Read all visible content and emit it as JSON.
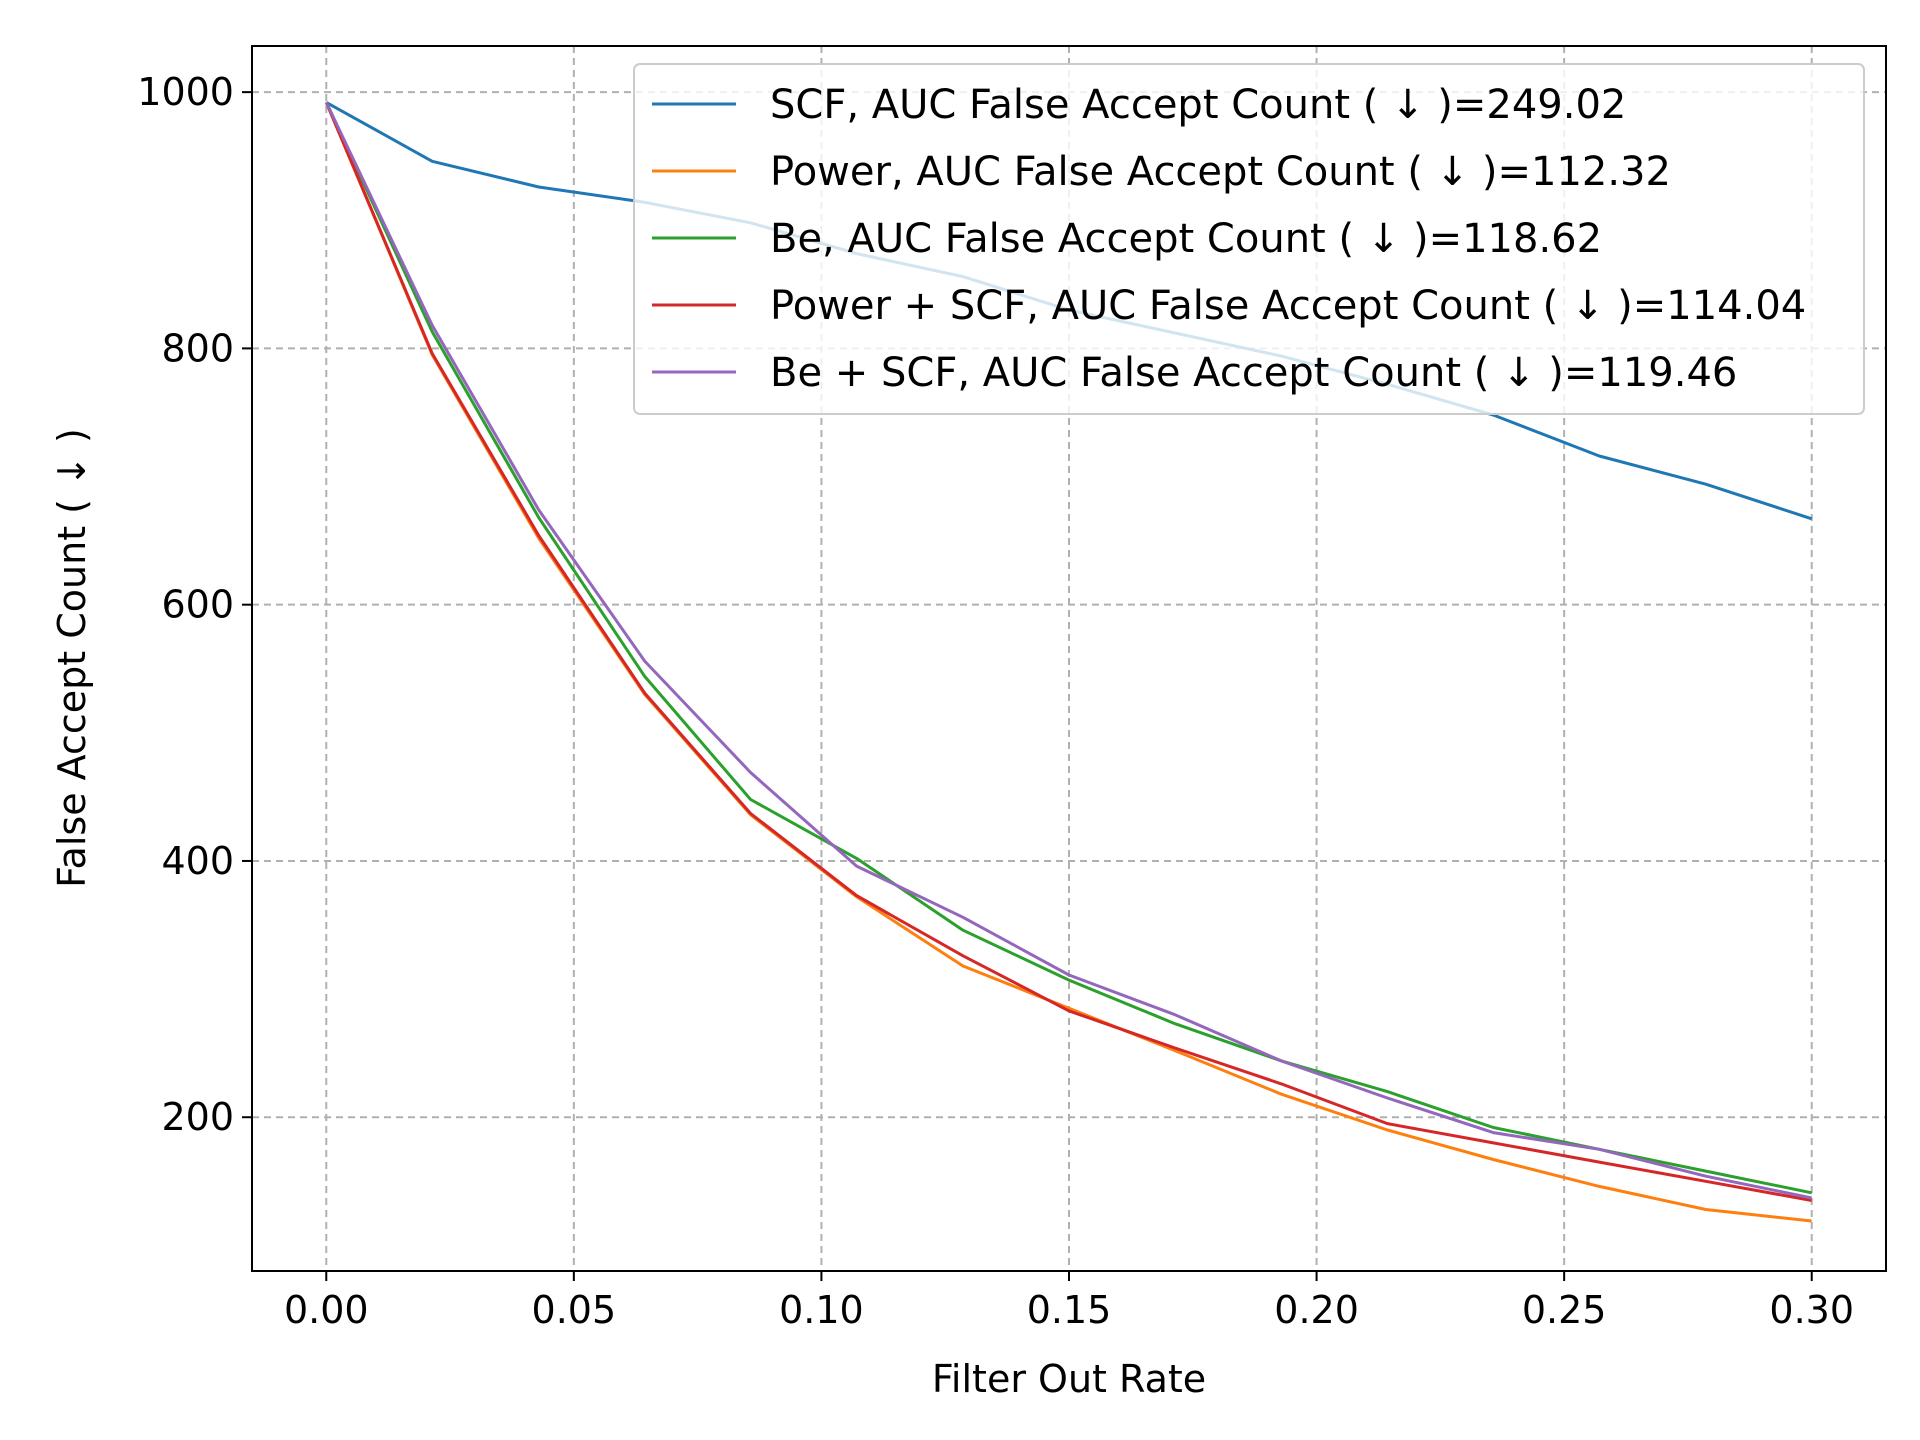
{
  "chart_data": {
    "type": "line",
    "title": "",
    "xlabel": "Filter Out Rate",
    "ylabel": "False Accept Count ( ↓ )",
    "xlim": [
      -0.015,
      0.315
    ],
    "ylim": [
      80,
      1036
    ],
    "xticks": [
      0.0,
      0.05,
      0.1,
      0.15,
      0.2,
      0.25,
      0.3
    ],
    "xtick_labels": [
      "0.00",
      "0.05",
      "0.10",
      "0.15",
      "0.20",
      "0.25",
      "0.30"
    ],
    "yticks": [
      200,
      400,
      600,
      800,
      1000
    ],
    "ytick_labels": [
      "200",
      "400",
      "600",
      "800",
      "1000"
    ],
    "grid": true,
    "legend_position": "top-right",
    "x": [
      0.0,
      0.0214,
      0.0429,
      0.0643,
      0.0857,
      0.1071,
      0.1286,
      0.15,
      0.1714,
      0.1929,
      0.2143,
      0.2357,
      0.2571,
      0.2786,
      0.3
    ],
    "series": [
      {
        "name": "SCF, AUC False Accept Count ( ↓ )=249.02",
        "color": "#1f77b4",
        "values": [
          992,
          946,
          926,
          914,
          898,
          874,
          856,
          830,
          812,
          794,
          772,
          748,
          716,
          694,
          667
        ]
      },
      {
        "name": "Power, AUC False Accept Count ( ↓ )=112.32",
        "color": "#ff7f0e",
        "values": [
          992,
          795,
          652,
          530,
          436,
          372,
          318,
          285,
          252,
          218,
          190,
          167,
          146,
          128,
          119
        ]
      },
      {
        "name": "Be, AUC False Accept Count ( ↓ )=118.62",
        "color": "#2ca02c",
        "values": [
          992,
          813,
          668,
          544,
          448,
          402,
          346,
          307,
          273,
          244,
          220,
          192,
          175,
          158,
          141
        ]
      },
      {
        "name": "Power + SCF, AUC False Accept Count ( ↓ )=114.04",
        "color": "#d62728",
        "values": [
          992,
          796,
          654,
          531,
          437,
          373,
          326,
          283,
          254,
          226,
          195,
          180,
          165,
          150,
          135
        ]
      },
      {
        "name": "Be + SCF, AUC False Accept Count ( ↓ )=119.46",
        "color": "#9467bd",
        "values": [
          992,
          818,
          674,
          556,
          469,
          396,
          356,
          311,
          280,
          244,
          215,
          188,
          175,
          154,
          137
        ]
      }
    ]
  }
}
